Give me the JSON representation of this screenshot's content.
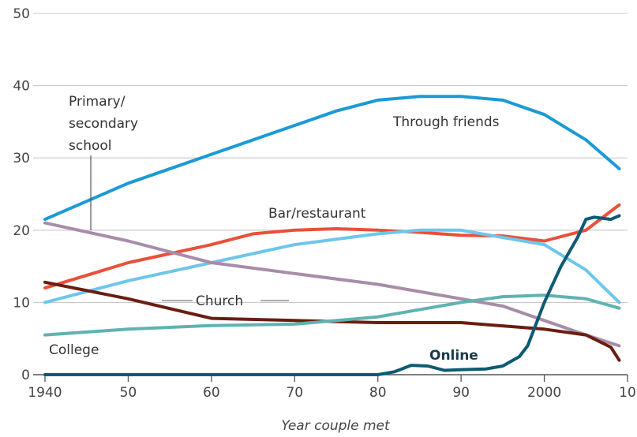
{
  "chart_data": {
    "type": "line",
    "title": "",
    "xlabel": "Year couple met",
    "ylabel": "",
    "xlim": [
      1940,
      2010
    ],
    "ylim": [
      0,
      50
    ],
    "grid": true,
    "x_ticks": [
      1940,
      1950,
      1960,
      1970,
      1980,
      1990,
      2000,
      2010
    ],
    "x_tick_labels": [
      "1940",
      "50",
      "60",
      "70",
      "80",
      "90",
      "2000",
      "10"
    ],
    "y_ticks": [
      0,
      10,
      20,
      30,
      40,
      50
    ],
    "y_tick_labels": [
      "0",
      "10",
      "20",
      "30",
      "40",
      "50"
    ],
    "series": [
      {
        "name": "Through friends",
        "color": "#1a9ad6",
        "x": [
          1940,
          1950,
          1960,
          1970,
          1975,
          1980,
          1985,
          1990,
          1995,
          2000,
          2005,
          2009
        ],
        "y": [
          21.5,
          26.5,
          30.5,
          34.5,
          36.5,
          38,
          38.5,
          38.5,
          38,
          36,
          32.5,
          28.5
        ]
      },
      {
        "name": "Bar/restaurant",
        "color": "#e8503a",
        "x": [
          1940,
          1950,
          1960,
          1965,
          1970,
          1975,
          1980,
          1985,
          1990,
          1995,
          2000,
          2005,
          2009
        ],
        "y": [
          12,
          15.5,
          18,
          19.5,
          20,
          20.2,
          20,
          19.7,
          19.3,
          19.2,
          18.5,
          20,
          23.5
        ]
      },
      {
        "name": "",
        "color": "#6ec6ea",
        "x": [
          1940,
          1950,
          1960,
          1970,
          1980,
          1985,
          1990,
          1995,
          2000,
          2005,
          2009
        ],
        "y": [
          10,
          13,
          15.5,
          18,
          19.5,
          20,
          20,
          19,
          18,
          14.5,
          10
        ]
      },
      {
        "name": "Primary/\nsecondary\nschool",
        "color": "#a88ca8",
        "x": [
          1940,
          1950,
          1960,
          1970,
          1980,
          1990,
          1995,
          2000,
          2005,
          2009
        ],
        "y": [
          21,
          18.5,
          15.5,
          14,
          12.5,
          10.5,
          9.5,
          7.5,
          5.5,
          4
        ]
      },
      {
        "name": "Church",
        "color": "#6a1e12",
        "x": [
          1940,
          1950,
          1960,
          1970,
          1980,
          1990,
          2000,
          2005,
          2008,
          2009
        ],
        "y": [
          12.8,
          10.5,
          7.8,
          7.5,
          7.2,
          7.2,
          6.3,
          5.5,
          3.8,
          2
        ]
      },
      {
        "name": "College",
        "color": "#5fb3b0",
        "x": [
          1940,
          1950,
          1960,
          1970,
          1980,
          1990,
          1995,
          2000,
          2005,
          2009
        ],
        "y": [
          5.5,
          6.3,
          6.8,
          7,
          8,
          10,
          10.8,
          11,
          10.5,
          9.2
        ]
      },
      {
        "name": "Online",
        "color": "#0d5a73",
        "x": [
          1940,
          1980,
          1982,
          1984,
          1986,
          1988,
          1990,
          1993,
          1995,
          1997,
          1998,
          2000,
          2002,
          2004,
          2005,
          2006,
          2008,
          2009
        ],
        "y": [
          0,
          0,
          0.4,
          1.3,
          1.2,
          0.6,
          0.7,
          0.8,
          1.2,
          2.5,
          4,
          10,
          15,
          19,
          21.5,
          21.8,
          21.5,
          22
        ]
      }
    ]
  },
  "annotations": {
    "school": [
      "Primary/",
      "secondary",
      "school"
    ],
    "friends": "Through friends",
    "bar": "Bar/restaurant",
    "church": "Church",
    "college": "College",
    "online": "Online"
  }
}
